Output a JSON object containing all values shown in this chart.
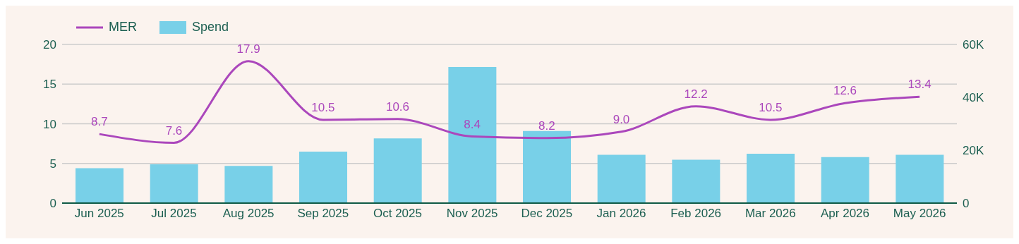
{
  "chart_data": {
    "type": "bar",
    "categories": [
      "Jun 2025",
      "Jul 2025",
      "Aug 2025",
      "Sep 2025",
      "Oct 2025",
      "Nov 2025",
      "Dec 2025",
      "Jan 2026",
      "Feb 2026",
      "Mar 2026",
      "Apr 2026",
      "May 2026"
    ],
    "series": [
      {
        "name": "MER",
        "type": "line",
        "axis": "y",
        "color": "#ab47bc",
        "values": [
          8.7,
          7.6,
          17.9,
          10.5,
          10.6,
          8.4,
          8.2,
          9.0,
          12.2,
          10.5,
          12.6,
          13.4
        ],
        "value_labels": [
          "8.7",
          "7.6",
          "17.9",
          "10.5",
          "10.6",
          "8.4",
          "8.2",
          "9.0",
          "12.2",
          "10.5",
          "12.6",
          "13.4"
        ]
      },
      {
        "name": "Spend",
        "axis": "y2",
        "color": "#78d0e8",
        "values": [
          13200,
          14700,
          14100,
          19500,
          24500,
          51500,
          27300,
          18300,
          16400,
          18700,
          17400,
          18300
        ]
      }
    ],
    "ylim": [
      0,
      20
    ],
    "yticks": [
      0,
      5,
      10,
      15,
      20
    ],
    "y2lim": [
      0,
      60000
    ],
    "y2ticks": [
      0,
      {
        "value": 20000,
        "label": "20K"
      },
      {
        "value": 40000,
        "label": "40K"
      },
      {
        "value": 60000,
        "label": "60K"
      }
    ],
    "grid": "y",
    "legend": "top left"
  }
}
